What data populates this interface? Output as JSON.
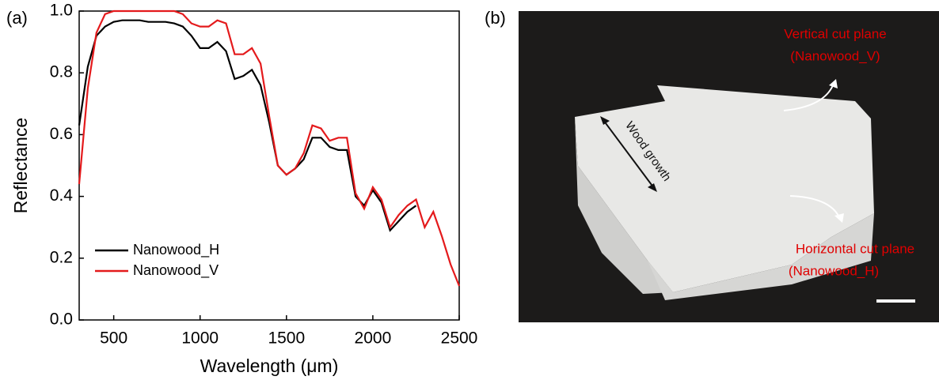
{
  "panel_labels": [
    "(a)",
    "(b)"
  ],
  "chart_data": {
    "type": "line",
    "x_label": "Wavelength (μm)",
    "y_label": "Reflectance",
    "x": [
      300,
      350,
      400,
      450,
      500,
      550,
      600,
      650,
      700,
      750,
      800,
      850,
      900,
      950,
      1000,
      1050,
      1100,
      1150,
      1200,
      1250,
      1300,
      1350,
      1400,
      1450,
      1500,
      1550,
      1600,
      1650,
      1700,
      1750,
      1800,
      1850,
      1900,
      1950,
      2000,
      2050,
      2100,
      2150,
      2200,
      2250,
      2300,
      2350,
      2400,
      2450,
      2500
    ],
    "series": [
      {
        "name": "Nanowood_H",
        "color": "#000000",
        "values": [
          0.63,
          0.82,
          0.92,
          0.95,
          0.965,
          0.97,
          0.97,
          0.97,
          0.965,
          0.965,
          0.965,
          0.96,
          0.95,
          0.92,
          0.88,
          0.88,
          0.9,
          0.87,
          0.78,
          0.79,
          0.81,
          0.76,
          0.64,
          0.5,
          0.47,
          0.49,
          0.52,
          0.59,
          0.59,
          0.56,
          0.55,
          0.55,
          0.4,
          0.37,
          0.42,
          0.38,
          0.29,
          0.32,
          0.35,
          0.37,
          null,
          null,
          null,
          null,
          null
        ]
      },
      {
        "name": "Nanowood_V",
        "color": "#e41a1c",
        "values": [
          0.44,
          0.75,
          0.93,
          0.99,
          1,
          1,
          1,
          1,
          1,
          1,
          1,
          1,
          0.99,
          0.96,
          0.95,
          0.95,
          0.97,
          0.96,
          0.86,
          0.86,
          0.88,
          0.83,
          0.66,
          0.5,
          0.47,
          0.49,
          0.54,
          0.63,
          0.62,
          0.58,
          0.59,
          0.59,
          0.41,
          0.36,
          0.43,
          0.39,
          0.3,
          0.34,
          0.37,
          0.39,
          0.3,
          0.35,
          0.27,
          0.18,
          0.11
        ]
      }
    ],
    "xlim": [
      300,
      2500
    ],
    "xticks": [
      500,
      1000,
      1500,
      2000,
      2500
    ],
    "ylim": [
      0,
      1
    ],
    "yticks": [
      {
        "value": 0,
        "label": "0.0"
      },
      0.2,
      0.4,
      0.6,
      0.8,
      {
        "value": 1,
        "label": "1.0"
      }
    ],
    "grid": false,
    "legend": "lower left"
  },
  "photo": {
    "annotations": [
      "Vertical cut plane",
      "(Nanowood_V)",
      "Wood growth",
      "Horizontal cut plane",
      "(Nanowood_H)"
    ]
  }
}
